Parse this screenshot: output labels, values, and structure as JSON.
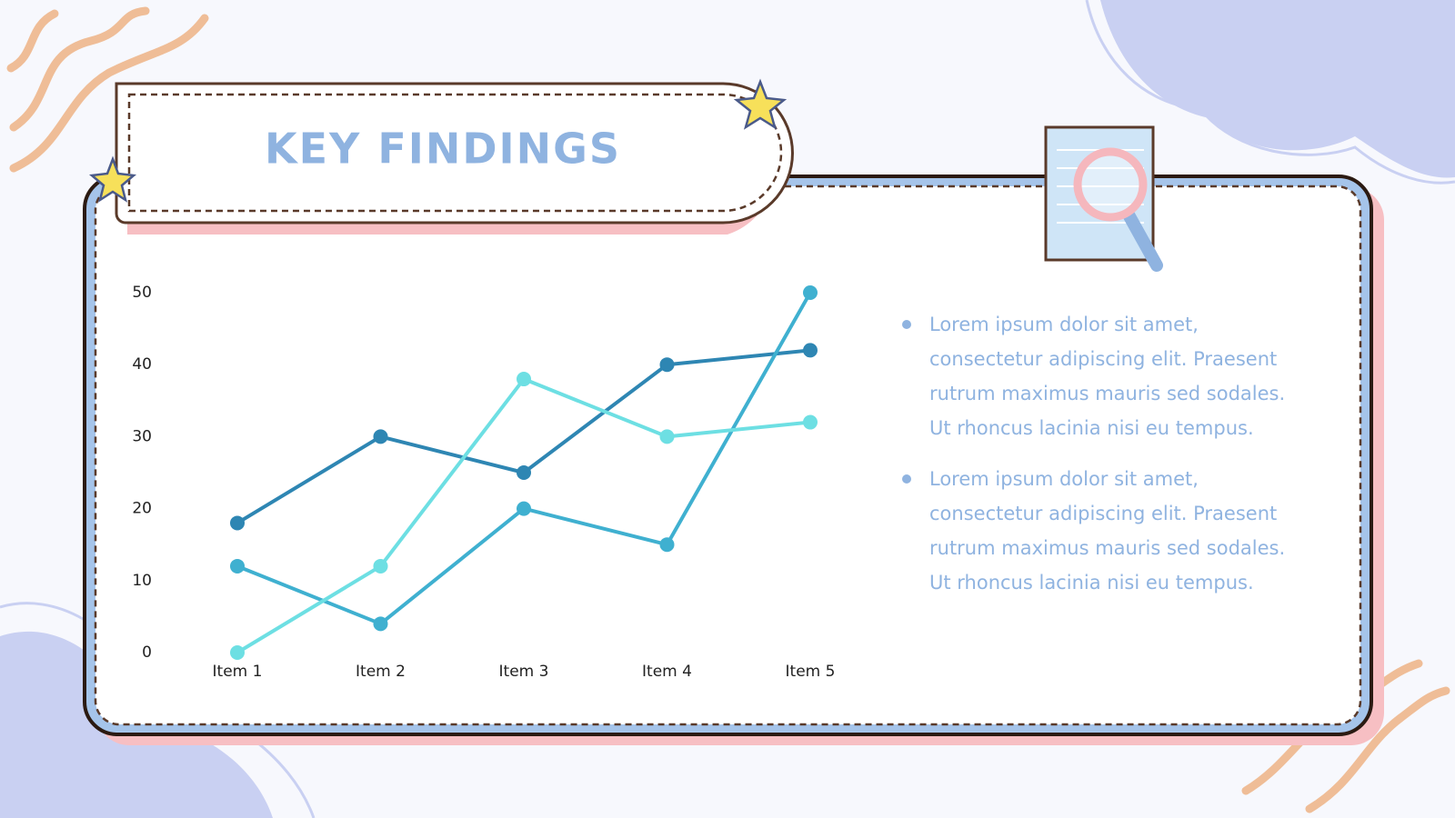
{
  "slide": {
    "title": "KEY FINDINGS",
    "bullets": [
      "Lorem ipsum dolor sit amet, consectetur adipiscing elit. Praesent rutrum maximus mauris sed sodales. Ut rhoncus lacinia nisi eu tempus.",
      "Lorem ipsum dolor sit amet, consectetur adipiscing elit. Praesent rutrum maximus mauris sed sodales. Ut rhoncus lacinia nisi eu tempus."
    ]
  },
  "chart_data": {
    "type": "line",
    "categories": [
      "Item 1",
      "Item 2",
      "Item 3",
      "Item 4",
      "Item 5"
    ],
    "series": [
      {
        "color": "#2e86b3",
        "values": [
          18,
          30,
          25,
          40,
          42
        ]
      },
      {
        "color": "#3fb0d0",
        "values": [
          12,
          4,
          20,
          15,
          50
        ]
      },
      {
        "color": "#6ddfe3",
        "values": [
          0,
          12,
          38,
          30,
          32
        ]
      }
    ],
    "ylim": [
      0,
      50
    ],
    "yticks": [
      0,
      10,
      20,
      30,
      40,
      50
    ],
    "grid": false
  }
}
